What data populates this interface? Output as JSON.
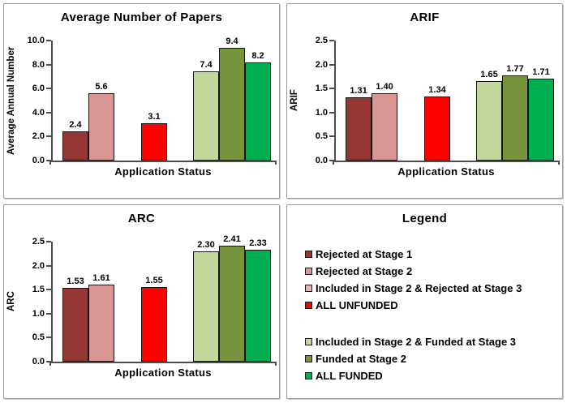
{
  "window": {
    "background": "#FFFFFF"
  },
  "palette": {
    "dark_red": "#953735",
    "pink": "#D99694",
    "light_pink": "#E6B9B8",
    "red": "#FF0000",
    "light_green": "#C3D69B",
    "olive_green": "#77933C",
    "green": "#00B050",
    "axis": "#4D4D4D",
    "bar_border": "#151515"
  },
  "chart_data": [
    {
      "type": "bar",
      "title": "Average Number of Papers",
      "ylabel": "Average Annual Number",
      "xlabel": "Application Status",
      "ylim": [
        0,
        10
      ],
      "ytick_labels": [
        "10.0",
        "8.0",
        "6.0",
        "4.0",
        "2.0",
        "0.0"
      ],
      "grid": false,
      "legend_position": "none",
      "bars": [
        {
          "series": "Rejected at Stage 1",
          "value": 2.4,
          "label": "2.4",
          "color": "dark_red",
          "group": 0
        },
        {
          "series": "Rejected at Stage 2",
          "value": 5.6,
          "label": "5.6",
          "color": "pink",
          "group": 0
        },
        {
          "series": "ALL UNFUNDED",
          "value": 3.1,
          "label": "3.1",
          "color": "red",
          "group": 1
        },
        {
          "series": "Included in Stage 2 & Funded at Stage 3",
          "value": 7.4,
          "label": "7.4",
          "color": "light_green",
          "group": 2
        },
        {
          "series": "Funded at Stage 2",
          "value": 9.4,
          "label": "9.4",
          "color": "olive_green",
          "group": 2
        },
        {
          "series": "ALL FUNDED",
          "value": 8.2,
          "label": "8.2",
          "color": "green",
          "group": 2
        }
      ]
    },
    {
      "type": "bar",
      "title": "ARIF",
      "ylabel": "ARIF",
      "xlabel": "Application Status",
      "ylim": [
        0,
        2.5
      ],
      "ytick_labels": [
        "2.5",
        "2.0",
        "1.5",
        "1.0",
        "0.5",
        "0.0"
      ],
      "grid": false,
      "legend_position": "none",
      "bars": [
        {
          "series": "Rejected at Stage 1",
          "value": 1.31,
          "label": "1.31",
          "color": "dark_red",
          "group": 0
        },
        {
          "series": "Rejected at Stage 2",
          "value": 1.4,
          "label": "1.40",
          "color": "pink",
          "group": 0
        },
        {
          "series": "ALL UNFUNDED",
          "value": 1.34,
          "label": "1.34",
          "color": "red",
          "group": 1
        },
        {
          "series": "Included in Stage 2 & Funded at Stage 3",
          "value": 1.65,
          "label": "1.65",
          "color": "light_green",
          "group": 2
        },
        {
          "series": "Funded at Stage 2",
          "value": 1.77,
          "label": "1.77",
          "color": "olive_green",
          "group": 2
        },
        {
          "series": "ALL FUNDED",
          "value": 1.71,
          "label": "1.71",
          "color": "green",
          "group": 2
        }
      ]
    },
    {
      "type": "bar",
      "title": "ARC",
      "ylabel": "ARC",
      "xlabel": "Application Status",
      "ylim": [
        0,
        2.5
      ],
      "ytick_labels": [
        "2.5",
        "2.0",
        "1.5",
        "1.0",
        "0.5",
        "0.0"
      ],
      "grid": false,
      "legend_position": "none",
      "bars": [
        {
          "series": "Rejected at Stage 1",
          "value": 1.53,
          "label": "1.53",
          "color": "dark_red",
          "group": 0
        },
        {
          "series": "Rejected at Stage 2",
          "value": 1.61,
          "label": "1.61",
          "color": "pink",
          "group": 0
        },
        {
          "series": "ALL UNFUNDED",
          "value": 1.55,
          "label": "1.55",
          "color": "red",
          "group": 1
        },
        {
          "series": "Included in Stage 2 & Funded at Stage 3",
          "value": 2.3,
          "label": "2.30",
          "color": "light_green",
          "group": 2
        },
        {
          "series": "Funded at Stage 2",
          "value": 2.41,
          "label": "2.41",
          "color": "olive_green",
          "group": 2
        },
        {
          "series": "ALL FUNDED",
          "value": 2.33,
          "label": "2.33",
          "color": "green",
          "group": 2
        }
      ]
    }
  ],
  "legend": {
    "title": "Legend",
    "groups": [
      {
        "items": [
          {
            "label": "Rejected at Stage 1",
            "color": "dark_red"
          },
          {
            "label": "Rejected at Stage 2",
            "color": "pink"
          },
          {
            "label": "Included in Stage 2 & Rejected at Stage 3",
            "color": "light_pink"
          },
          {
            "label": "ALL UNFUNDED",
            "color": "red"
          }
        ]
      },
      {
        "items": [
          {
            "label": "Included in Stage 2 & Funded at Stage 3",
            "color": "light_green"
          },
          {
            "label": "Funded at Stage 2",
            "color": "olive_green"
          },
          {
            "label": "ALL FUNDED",
            "color": "green"
          }
        ]
      }
    ]
  }
}
